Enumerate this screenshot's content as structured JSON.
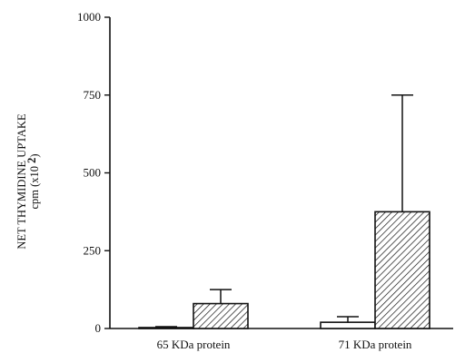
{
  "chart_data": {
    "type": "bar",
    "ylabel_line1": "NET THYMIDINE UPTAKE",
    "ylabel_line2": "cpm (x10 ",
    "ylabel_exp": "2",
    "ylabel_close": ")",
    "ylim": [
      0,
      1000
    ],
    "yticks": [
      0,
      250,
      500,
      750,
      1000
    ],
    "categories": [
      "65 KDa protein",
      "71 KDa protein"
    ],
    "series": [
      {
        "pattern": "open",
        "values": [
          3,
          20
        ],
        "errors": [
          3,
          18
        ]
      },
      {
        "pattern": "hatched",
        "values": [
          80,
          375
        ],
        "errors": [
          45,
          375
        ]
      }
    ],
    "grid": false,
    "legend": "none"
  }
}
